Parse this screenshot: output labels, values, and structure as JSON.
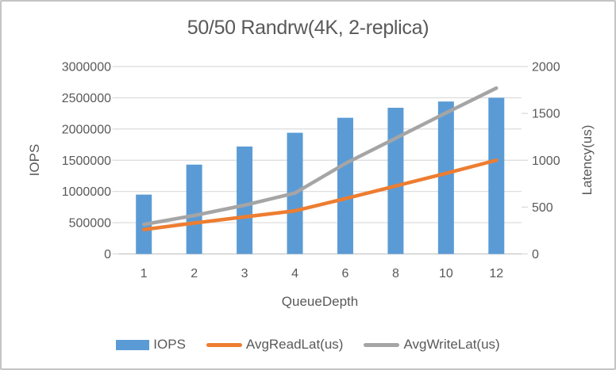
{
  "chart_data": {
    "type": "bar",
    "subtype": "combo-bar-line",
    "title": "50/50 Randrw(4K, 2-replica)",
    "categories": [
      "1",
      "2",
      "3",
      "4",
      "6",
      "8",
      "10",
      "12"
    ],
    "xlabel": "QueueDepth",
    "y_left": {
      "label": "IOPS",
      "min": 0,
      "max": 3000000,
      "step": 500000
    },
    "y_right": {
      "label": "Latency(us)",
      "min": 0,
      "max": 2000,
      "step": 500
    },
    "grid": true,
    "legend_position": "bottom",
    "series": [
      {
        "name": "IOPS",
        "type": "bar",
        "axis": "left",
        "color": "#5B9BD5",
        "values": [
          950000,
          1430000,
          1720000,
          1940000,
          2180000,
          2340000,
          2440000,
          2500000
        ]
      },
      {
        "name": "AvgReadLat(us)",
        "type": "line",
        "axis": "right",
        "color": "#ED7D31",
        "values": [
          260,
          330,
          395,
          460,
          590,
          725,
          860,
          1000
        ]
      },
      {
        "name": "AvgWriteLat(us)",
        "type": "line",
        "axis": "right",
        "color": "#A5A5A5",
        "values": [
          315,
          410,
          520,
          650,
          965,
          1235,
          1505,
          1770
        ]
      }
    ],
    "colors": {
      "text": "#595959",
      "grid": "#D9D9D9",
      "axis_line": "#C6C6C6",
      "frame_border": "#C4C4C4"
    }
  }
}
